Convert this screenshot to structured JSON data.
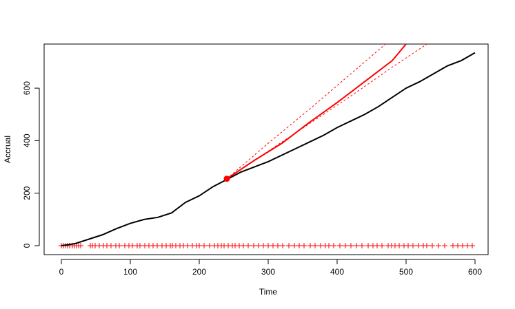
{
  "chart_data": {
    "type": "line",
    "xlabel": "Time",
    "ylabel": "Accrual",
    "xlim": [
      -25,
      619
    ],
    "ylim": [
      -34,
      768
    ],
    "xticks": [
      0,
      100,
      200,
      300,
      400,
      500,
      600
    ],
    "yticks": [
      0,
      200,
      400,
      600
    ],
    "series": [
      {
        "color": "#000000",
        "width": 2,
        "dash": false,
        "x": [
          0,
          20,
          40,
          60,
          80,
          100,
          120,
          140,
          160,
          180,
          200,
          220,
          240,
          260,
          280,
          300,
          320,
          340,
          360,
          380,
          400,
          420,
          440,
          460,
          480,
          500,
          520,
          540,
          560,
          580,
          600
        ],
        "values": [
          0,
          8,
          25,
          42,
          65,
          85,
          100,
          108,
          125,
          165,
          190,
          225,
          252,
          280,
          300,
          320,
          345,
          370,
          395,
          420,
          450,
          475,
          500,
          530,
          565,
          600,
          625,
          655,
          685,
          705,
          735
        ]
      },
      {
        "color": "#ff0000",
        "width": 2,
        "dash": false,
        "x": [
          240,
          280,
          320,
          360,
          400,
          440,
          480,
          500
        ],
        "values": [
          255,
          325,
          390,
          470,
          545,
          625,
          705,
          768
        ]
      },
      {
        "color": "#ff0000",
        "width": 1,
        "dash": true,
        "x": [
          240,
          300,
          360,
          420,
          480
        ],
        "values": [
          255,
          390,
          520,
          655,
          790
        ]
      },
      {
        "color": "#ff0000",
        "width": 1,
        "dash": true,
        "x": [
          240,
          300,
          360,
          420,
          480,
          540
        ],
        "values": [
          255,
          360,
          465,
          570,
          680,
          785
        ]
      }
    ],
    "point": {
      "color": "#ff0000",
      "x": 240,
      "value": 255
    },
    "rug": {
      "color": "#ff0000",
      "x": [
        0,
        3,
        6,
        9,
        12,
        16,
        19,
        22,
        25,
        28,
        42,
        45,
        49,
        55,
        61,
        66,
        72,
        79,
        84,
        92,
        98,
        103,
        110,
        114,
        121,
        127,
        133,
        139,
        146,
        152,
        158,
        161,
        166,
        172,
        177,
        183,
        190,
        196,
        200,
        207,
        215,
        222,
        227,
        232,
        236,
        242,
        248,
        252,
        258,
        264,
        271,
        279,
        286,
        293,
        300,
        307,
        314,
        321,
        330,
        338,
        345,
        352,
        361,
        368,
        376,
        383,
        388,
        395,
        404,
        412,
        420,
        428,
        436,
        445,
        452,
        458,
        465,
        474,
        479,
        484,
        490,
        497,
        503,
        510,
        518,
        525,
        530,
        538,
        547,
        556,
        568,
        575,
        582,
        589,
        596
      ],
      "values": [
        0,
        0,
        0,
        0,
        0,
        0,
        0,
        0,
        0,
        0,
        0,
        0,
        0,
        0,
        0,
        0,
        0,
        0,
        0,
        0,
        0,
        0,
        0,
        0,
        0,
        0,
        0,
        0,
        0,
        0,
        0,
        0,
        0,
        0,
        0,
        0,
        0,
        0,
        0,
        0,
        0,
        0,
        0,
        0,
        0,
        0,
        0,
        0,
        0,
        0,
        0,
        0,
        0,
        0,
        0,
        0,
        0,
        0,
        0,
        0,
        0,
        0,
        0,
        0,
        0,
        0,
        0,
        0,
        0,
        0,
        0,
        0,
        0,
        0,
        0,
        0,
        0,
        0,
        0,
        0,
        0,
        0,
        0,
        0,
        0,
        0,
        0,
        0,
        0,
        0,
        0,
        0,
        0,
        0,
        0
      ]
    }
  }
}
